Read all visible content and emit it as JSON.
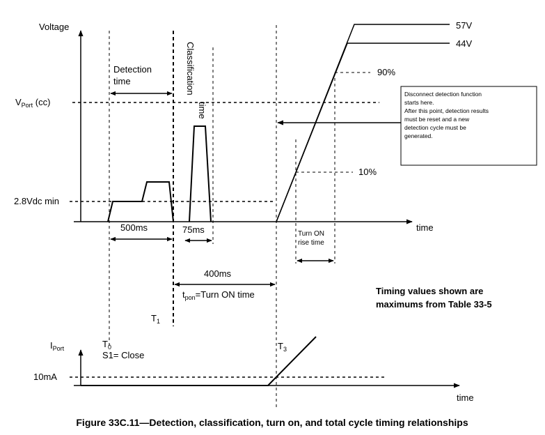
{
  "upper_plot": {
    "y_axis_label": "Voltage",
    "x_axis_label": "time",
    "v_port_label": "V",
    "v_port_sub": "Port",
    "v_port_suffix": " (cc)",
    "v_min_label": "2.8Vdc min",
    "v57_label": "57V",
    "v44_label": "44V",
    "pct90_label": "90%",
    "pct10_label": "10%",
    "detection_label_1": "Detection",
    "detection_label_2": "time",
    "classification_label_1": "Classification",
    "classification_label_2": "time",
    "dur_500": "500ms",
    "dur_75": "75ms",
    "dur_400": "400ms",
    "turn_on_rise_1": "Turn ON",
    "turn_on_rise_2": "rise time",
    "tpon_t": "t",
    "tpon_sub": "pon",
    "tpon_rest": "=Turn ON time",
    "t1_label": "T",
    "t1_sub": "1",
    "note_lines": [
      "Disconnect detection function",
      "starts here.",
      "After this point, detection results",
      "must be reset and a new",
      "detection cycle must be",
      "generated."
    ],
    "timing_note_1": "Timing values shown are",
    "timing_note_2": "maximums from Table 33-5"
  },
  "lower_plot": {
    "y_axis_label": "I",
    "y_axis_sub": "Port",
    "x_axis_label": "time",
    "i_label": "10mA",
    "t0_label": "T",
    "t0_sub": "0",
    "s1_label": "S1= Close",
    "t3_label": "T",
    "t3_sub": "3"
  },
  "caption": "Figure 33C.11—Detection, classification, turn on, and total cycle timing relationships"
}
